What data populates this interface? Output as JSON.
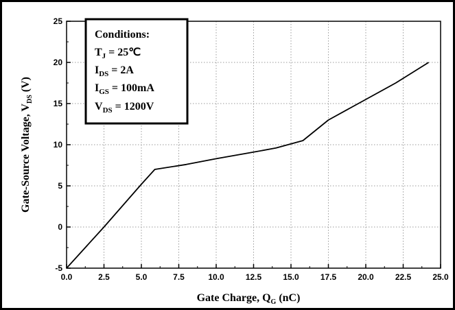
{
  "chart_data": {
    "type": "line",
    "xlabel": {
      "main": "Gate Charge, Q",
      "sub": "G",
      "tail": " (nC)"
    },
    "ylabel": {
      "main": "Gate-Source Voltage, V",
      "sub": "DS",
      "tail": " (V)"
    },
    "xlim": [
      0,
      25
    ],
    "ylim": [
      -5,
      25
    ],
    "x_ticks": [
      0,
      2.5,
      5,
      7.5,
      10,
      12.5,
      15,
      17.5,
      20,
      22.5,
      25
    ],
    "x_tick_labels": [
      "0.0",
      "2.5",
      "5.0",
      "7.5",
      "10.0",
      "12.5",
      "15.0",
      "17.5",
      "20.0",
      "22.5",
      "25.0"
    ],
    "y_ticks": [
      -5,
      0,
      5,
      10,
      15,
      20,
      25
    ],
    "y_tick_labels": [
      "-5",
      "0",
      "5",
      "10",
      "15",
      "20",
      "25"
    ],
    "grid": true,
    "series": [
      {
        "x": [
          0.0,
          2.5,
          5.0,
          5.9,
          8.0,
          10.0,
          12.5,
          14.0,
          15.8,
          17.5,
          20.0,
          22.0,
          24.2
        ],
        "y": [
          -5.0,
          0.0,
          5.2,
          7.0,
          7.6,
          8.3,
          9.1,
          9.6,
          10.5,
          13.0,
          15.5,
          17.5,
          20.0
        ]
      }
    ],
    "annotation": {
      "title": "Conditions:",
      "lines": [
        {
          "main": "T",
          "sub": "J",
          "tail": " = 25℃"
        },
        {
          "main": "I",
          "sub": "DS",
          "tail": " = 2A"
        },
        {
          "main": "I",
          "sub": "GS",
          "tail": " = 100mA"
        },
        {
          "main": "V",
          "sub": "DS",
          "tail": " = 1200V"
        }
      ]
    }
  }
}
